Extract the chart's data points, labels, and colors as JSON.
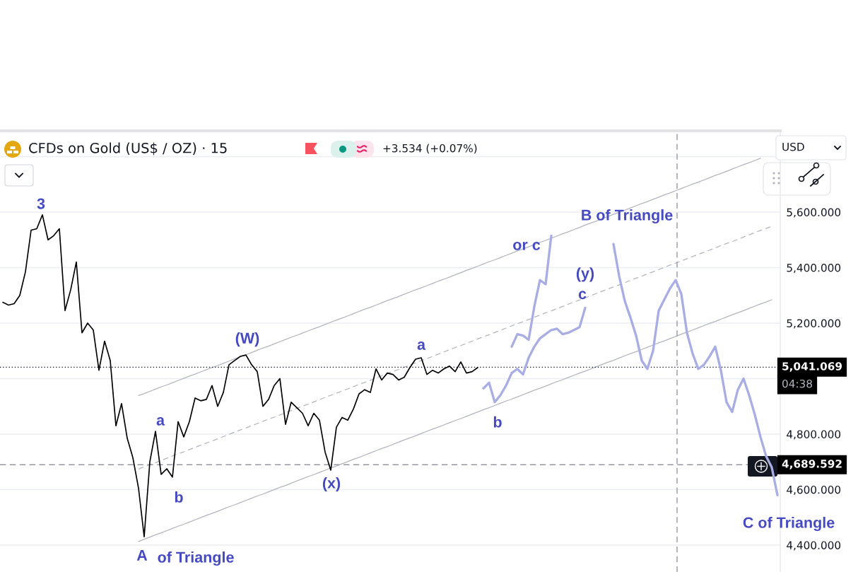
{
  "chart_data": {
    "type": "line",
    "title": "CFDs on Gold (US$ / OZ) · 15",
    "categories": [
      null,
      null,
      null,
      null,
      null,
      null,
      null,
      null,
      null,
      null,
      null,
      null,
      null,
      null,
      null,
      null,
      null,
      null,
      null,
      null,
      null,
      null,
      null,
      null,
      null,
      null,
      null,
      null,
      null,
      null,
      null,
      null,
      null,
      null,
      null,
      null,
      null,
      null,
      null,
      null,
      null,
      null,
      null,
      null,
      null,
      null,
      null,
      null,
      null,
      null,
      null,
      null,
      null,
      null,
      null,
      null,
      null,
      null,
      null,
      null,
      null,
      null,
      null,
      null,
      null,
      null,
      null,
      null,
      null,
      null,
      null,
      null,
      null,
      null,
      null,
      null,
      null,
      null,
      null,
      null,
      null,
      null,
      null,
      null,
      null,
      null,
      null,
      null,
      null,
      null,
      null,
      null,
      null,
      null,
      null,
      null,
      null,
      null,
      null,
      null,
      null,
      null,
      null,
      null,
      null,
      null,
      null,
      null,
      null,
      null,
      null,
      null,
      null,
      null,
      null,
      null,
      null,
      null,
      null,
      null,
      null,
      null,
      null,
      null,
      null,
      null,
      null,
      null,
      null,
      null,
      null,
      null,
      null,
      null,
      null,
      null,
      null,
      null
    ],
    "series": [
      {
        "color": "#000000",
        "values": [
          5275,
          5265,
          5270,
          5300,
          5385,
          5535,
          5540,
          5590,
          5500,
          5515,
          5540,
          5245,
          5320,
          5420,
          5165,
          5200,
          5175,
          5030,
          5135,
          5065,
          4830,
          4910,
          4785,
          4715,
          4605,
          4430,
          4700,
          4810,
          4655,
          4675,
          4645,
          4845,
          4790,
          4845,
          4930,
          4920,
          4925,
          4975,
          4900,
          4950,
          5050,
          5065,
          5080,
          5085,
          5050,
          5025,
          4900,
          4925,
          4975,
          5000,
          4835,
          4915,
          4895,
          4875,
          4830,
          4875,
          4850,
          4735,
          4670,
          4825,
          4860,
          4850,
          4890,
          4945,
          4960,
          4950,
          5035,
          4995,
          5020,
          5015,
          4995,
          5005,
          5040,
          5070,
          5075,
          5015,
          5030,
          5020,
          5035,
          5045,
          5025,
          5060,
          5020,
          5025,
          5040,
          null,
          null,
          null,
          null,
          null,
          null,
          null,
          null,
          null,
          null,
          null,
          null,
          null,
          null,
          null,
          null,
          null,
          null,
          null,
          null,
          null,
          null,
          null,
          null,
          null,
          null,
          null,
          null,
          null,
          null,
          null,
          null,
          null,
          null,
          null,
          null,
          null,
          null,
          null,
          null,
          null,
          null,
          null,
          null,
          null,
          null,
          null,
          null,
          null,
          null,
          null,
          null,
          null
        ]
      },
      {
        "color": "#a8aee4",
        "values": [
          null,
          null,
          null,
          null,
          null,
          null,
          null,
          null,
          null,
          null,
          null,
          null,
          null,
          null,
          null,
          null,
          null,
          null,
          null,
          null,
          null,
          null,
          null,
          null,
          null,
          null,
          null,
          null,
          null,
          null,
          null,
          null,
          null,
          null,
          null,
          null,
          null,
          null,
          null,
          null,
          null,
          null,
          null,
          null,
          null,
          null,
          null,
          null,
          null,
          null,
          null,
          null,
          null,
          null,
          null,
          null,
          null,
          null,
          null,
          null,
          null,
          null,
          null,
          null,
          null,
          null,
          null,
          null,
          null,
          null,
          null,
          null,
          null,
          null,
          null,
          null,
          null,
          null,
          null,
          null,
          null,
          null,
          null,
          null,
          null,
          4965,
          4985,
          4915,
          4940,
          4975,
          5020,
          5035,
          5015,
          5075,
          5115,
          5145,
          5160,
          5175,
          5180,
          5160,
          5165,
          5175,
          5185,
          5255,
          null,
          null,
          null,
          null,
          null,
          null,
          null,
          null,
          null,
          null,
          null,
          null,
          null,
          null,
          null,
          null,
          null,
          null,
          null,
          null,
          null,
          null,
          null,
          null,
          null,
          null,
          null,
          null,
          null,
          null,
          null,
          null,
          null,
          null
        ]
      },
      {
        "color": "#a8aee4",
        "values": [
          null,
          null,
          null,
          null,
          null,
          null,
          null,
          null,
          null,
          null,
          null,
          null,
          null,
          null,
          null,
          null,
          null,
          null,
          null,
          null,
          null,
          null,
          null,
          null,
          null,
          null,
          null,
          null,
          null,
          null,
          null,
          null,
          null,
          null,
          null,
          null,
          null,
          null,
          null,
          null,
          null,
          null,
          null,
          null,
          null,
          null,
          null,
          null,
          null,
          null,
          null,
          null,
          null,
          null,
          null,
          null,
          null,
          null,
          null,
          null,
          null,
          null,
          null,
          null,
          null,
          null,
          null,
          null,
          null,
          null,
          null,
          null,
          null,
          null,
          null,
          null,
          null,
          null,
          null,
          null,
          null,
          null,
          null,
          null,
          null,
          null,
          null,
          null,
          null,
          null,
          5115,
          5160,
          5155,
          5140,
          5260,
          5355,
          5340,
          5515,
          null,
          null,
          null,
          null,
          null,
          null,
          null,
          null,
          null,
          null,
          null,
          null,
          null,
          null,
          null,
          null,
          null,
          null,
          null,
          null,
          null,
          null,
          null,
          null,
          null,
          null,
          null,
          null,
          null,
          null,
          null,
          null,
          null,
          null,
          null,
          null,
          null,
          null,
          null,
          null
        ]
      },
      {
        "color": "#a8aee4",
        "values": [
          null,
          null,
          null,
          null,
          null,
          null,
          null,
          null,
          null,
          null,
          null,
          null,
          null,
          null,
          null,
          null,
          null,
          null,
          null,
          null,
          null,
          null,
          null,
          null,
          null,
          null,
          null,
          null,
          null,
          null,
          null,
          null,
          null,
          null,
          null,
          null,
          null,
          null,
          null,
          null,
          null,
          null,
          null,
          null,
          null,
          null,
          null,
          null,
          null,
          null,
          null,
          null,
          null,
          null,
          null,
          null,
          null,
          null,
          null,
          null,
          null,
          null,
          null,
          null,
          null,
          null,
          null,
          null,
          null,
          null,
          null,
          null,
          null,
          null,
          null,
          null,
          null,
          null,
          null,
          null,
          null,
          null,
          null,
          null,
          null,
          null,
          null,
          null,
          null,
          null,
          null,
          null,
          null,
          null,
          null,
          null,
          null,
          null,
          null,
          null,
          null,
          null,
          null,
          null,
          null,
          null,
          null,
          null,
          5485,
          5370,
          5280,
          5220,
          5155,
          5065,
          5035,
          5100,
          5245,
          5285,
          5325,
          5355,
          5305,
          5165,
          5090,
          5035,
          5050,
          5080,
          5115,
          5030,
          4915,
          4880,
          4960,
          5000,
          4940,
          4870,
          4790,
          4720,
          4680,
          4580
        ]
      },
      {
        "color": "#b2b5be",
        "values": [
          null,
          null,
          null,
          null,
          null,
          null,
          null,
          null,
          null,
          null,
          null,
          null,
          null,
          null,
          null,
          null,
          null,
          null,
          null,
          null,
          null,
          null,
          null,
          null,
          4939,
          4946,
          4954,
          4962,
          4970,
          4977,
          4985,
          4993,
          5001,
          5009,
          5016,
          5024,
          5032,
          5040,
          5047,
          5055,
          5063,
          5071,
          5079,
          5086,
          5094,
          5102,
          5110,
          5117,
          5125,
          5133,
          5141,
          5149,
          5156,
          5164,
          5172,
          5180,
          5187,
          5195,
          5203,
          5211,
          5218,
          5226,
          5234,
          5242,
          5250,
          5257,
          5265,
          5273,
          5281,
          5288,
          5296,
          5304,
          5312,
          5320,
          5327,
          5335,
          5343,
          5351,
          5358,
          5366,
          5374,
          5382,
          5390,
          5397,
          5405,
          5413,
          5421,
          5428,
          5436,
          5444,
          5452,
          5460,
          5467,
          5475,
          5483,
          5491,
          5498,
          5506,
          5514,
          5522,
          5529,
          5537,
          5545,
          5553,
          5561,
          5568,
          5576,
          5584,
          5592,
          5599,
          5607,
          5615,
          5623,
          5631,
          5638,
          5646,
          5654,
          5662,
          5669,
          5677,
          5685,
          5693,
          5701,
          5708,
          5716,
          5724,
          5732,
          5739,
          5747,
          5755,
          5763,
          5771,
          5778,
          5786,
          5794,
          null,
          null,
          null
        ]
      },
      {
        "color": "#b2b5be",
        "line_style": "dashed",
        "values": [
          null,
          null,
          null,
          null,
          null,
          null,
          null,
          null,
          null,
          null,
          null,
          null,
          null,
          null,
          null,
          null,
          null,
          null,
          null,
          null,
          null,
          null,
          null,
          null,
          4674,
          4682,
          4690,
          4697,
          4705,
          4713,
          4721,
          4729,
          4736,
          4744,
          4752,
          4760,
          4768,
          4775,
          4783,
          4791,
          4799,
          4807,
          4815,
          4822,
          4830,
          4838,
          4846,
          4854,
          4861,
          4869,
          4877,
          4885,
          4893,
          4901,
          4908,
          4916,
          4924,
          4932,
          4940,
          4947,
          4955,
          4963,
          4971,
          4979,
          4986,
          4994,
          5002,
          5010,
          5018,
          5026,
          5033,
          5041,
          5049,
          5057,
          5065,
          5072,
          5080,
          5088,
          5096,
          5104,
          5112,
          5119,
          5127,
          5135,
          5143,
          5151,
          5158,
          5166,
          5174,
          5182,
          5190,
          5198,
          5205,
          5213,
          5221,
          5229,
          5237,
          5244,
          5252,
          5260,
          5268,
          5276,
          5283,
          5291,
          5299,
          5307,
          5315,
          5323,
          5330,
          5338,
          5346,
          5354,
          5362,
          5369,
          5377,
          5385,
          5393,
          5401,
          5409,
          5416,
          5424,
          5432,
          5440,
          5448,
          5455,
          5463,
          5471,
          5479,
          5487,
          5494,
          5502,
          5510,
          5518,
          5526,
          5534,
          5541,
          5549,
          null
        ]
      },
      {
        "color": "#b2b5be",
        "values": [
          null,
          null,
          null,
          null,
          null,
          null,
          null,
          null,
          null,
          null,
          null,
          null,
          null,
          null,
          null,
          null,
          null,
          null,
          null,
          null,
          null,
          null,
          null,
          null,
          4413,
          4421,
          4429,
          4437,
          4444,
          4452,
          4460,
          4468,
          4475,
          4483,
          4491,
          4499,
          4507,
          4514,
          4522,
          4530,
          4538,
          4545,
          4553,
          4561,
          4569,
          4577,
          4584,
          4592,
          4600,
          4608,
          4615,
          4623,
          4631,
          4639,
          4647,
          4654,
          4662,
          4670,
          4678,
          4685,
          4693,
          4701,
          4709,
          4716,
          4724,
          4732,
          4740,
          4748,
          4755,
          4763,
          4771,
          4779,
          4786,
          4794,
          4802,
          4810,
          4818,
          4825,
          4833,
          4841,
          4849,
          4856,
          4864,
          4872,
          4880,
          4888,
          4895,
          4903,
          4911,
          4919,
          4926,
          4934,
          4942,
          4950,
          4958,
          4965,
          4973,
          4981,
          4989,
          4996,
          5004,
          5012,
          5020,
          5027,
          5035,
          5043,
          5051,
          5059,
          5066,
          5074,
          5082,
          5090,
          5097,
          5105,
          5113,
          5121,
          5129,
          5136,
          5144,
          5152,
          5160,
          5167,
          5175,
          5183,
          5191,
          5199,
          5206,
          5214,
          5222,
          5230,
          5237,
          5245,
          5253,
          5261,
          5269,
          5276,
          5284,
          null
        ]
      }
    ],
    "ylim": [
      4303,
      5893
    ],
    "yticks": [
      {
        "value": 5800,
        "label": null
      },
      {
        "value": 5600,
        "label": "5,600.000"
      },
      {
        "value": 5400,
        "label": "5,400.000"
      },
      {
        "value": 5200,
        "label": "5,200.000"
      },
      {
        "value": 5000,
        "label": null
      },
      {
        "value": 4800,
        "label": "4,800.000"
      },
      {
        "value": 4600,
        "label": "4,600.000"
      },
      {
        "value": 4400,
        "label": "4,400.000"
      }
    ],
    "grid": "y",
    "tick_labels": "y",
    "ref_lines": [
      {
        "axis": "y",
        "value": 5041.069,
        "label": "5,041.069",
        "color": "#131722",
        "line_style": "dotted"
      },
      {
        "axis": "y",
        "value": 4689.592,
        "label": "4,689.592",
        "color": "#9598a1",
        "line_style": "dashed"
      }
    ],
    "annotations": [
      "+3.534 (+0.07%)",
      "USD",
      "04:38",
      {
        "text": "3",
        "y": 5590
      },
      {
        "text": "A",
        "y": 4430
      },
      "of Triangle",
      "a",
      "b",
      {
        "text": "(W)",
        "y": 5085
      },
      {
        "text": "(x)",
        "y": 4670
      },
      {
        "text": "a",
        "y": 5075
      },
      {
        "text": "b",
        "y": 4915
      },
      "or c",
      {
        "text": "(y)",
        "y": 5255
      },
      {
        "text": "c",
        "y": 5255
      },
      "B of Triangle",
      "C of Triangle"
    ]
  }
}
